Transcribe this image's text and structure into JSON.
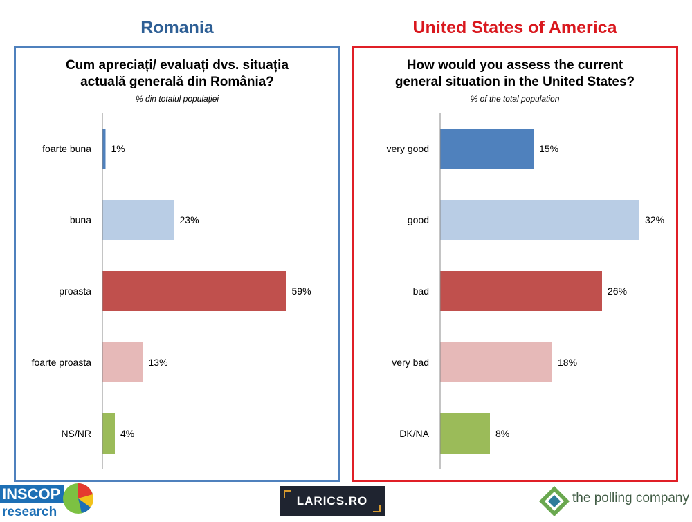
{
  "headers": {
    "left": "Romania",
    "right": "United States of America"
  },
  "chart_data": [
    {
      "type": "bar",
      "orientation": "horizontal",
      "title_line1": "Cum apreciați/ evaluați dvs. situația",
      "title_line2": "actuală generală din România?",
      "subtitle": "% din totalul populației",
      "categories": [
        "foarte buna",
        "buna",
        "proasta",
        "foarte proasta",
        "NS/NR"
      ],
      "values": [
        1,
        23,
        59,
        13,
        4
      ],
      "value_labels": [
        "1%",
        "23%",
        "59%",
        "13%",
        "4%"
      ],
      "xlim": [
        0,
        70
      ],
      "colors": [
        "#4f81bd",
        "#b9cde5",
        "#c0504d",
        "#e6b9b8",
        "#9bbb59"
      ],
      "grid": false,
      "legend": "none"
    },
    {
      "type": "bar",
      "orientation": "horizontal",
      "title_line1": "How would you assess the current",
      "title_line2": "general situation in the United States?",
      "subtitle": "% of the total population",
      "categories": [
        "very good",
        "good",
        "bad",
        "very bad",
        "DK/NA"
      ],
      "values": [
        15,
        32,
        26,
        18,
        8
      ],
      "value_labels": [
        "15%",
        "32%",
        "26%",
        "18%",
        "8%"
      ],
      "xlim": [
        0,
        35
      ],
      "colors": [
        "#4f81bd",
        "#b9cde5",
        "#c0504d",
        "#e6b9b8",
        "#9bbb59"
      ],
      "grid": false,
      "legend": "none"
    }
  ],
  "logos": {
    "inscop_line1": "INSCOP",
    "inscop_line2": "research",
    "larics": "LARICS.RO",
    "polling": "the polling company"
  }
}
